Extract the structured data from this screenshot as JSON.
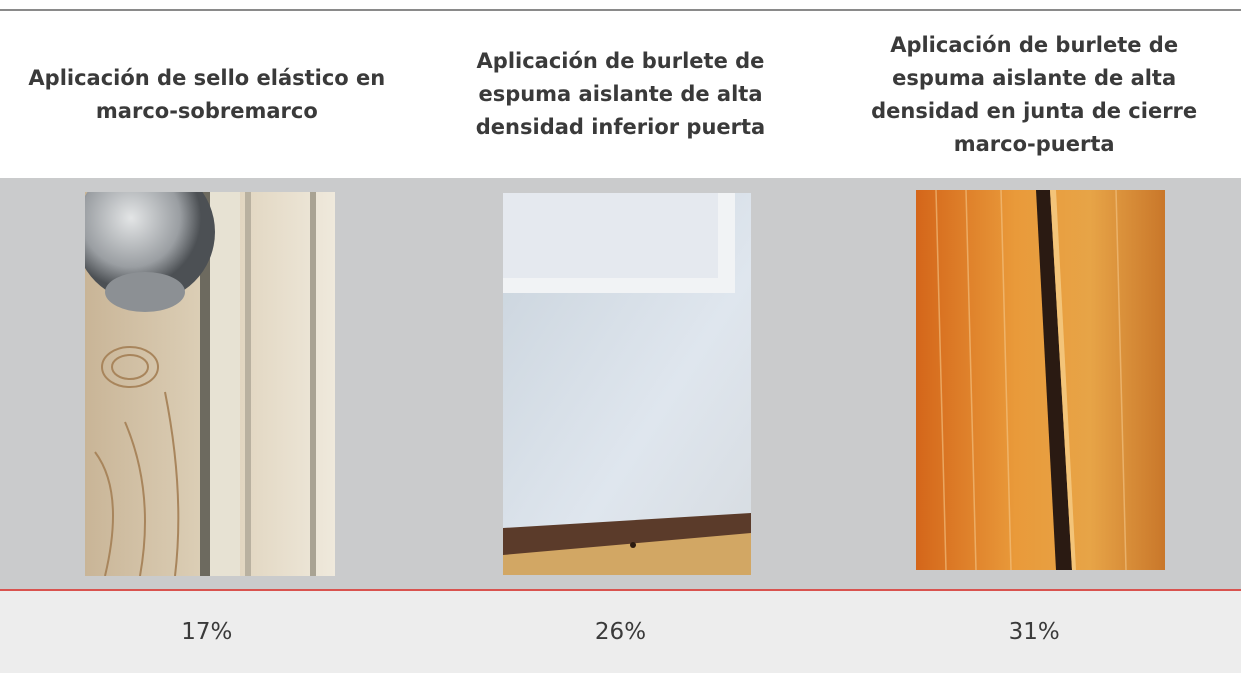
{
  "table": {
    "headers": [
      "Aplicación de sello elástico en marco-sobremarco",
      "Aplicación de burlete de espuma aislante de alta densidad inferior puerta",
      "Aplicación de burlete de espuma aislante de alta densidad en junta de cierre marco-puerta"
    ],
    "values": [
      "17%",
      "26%",
      "31%"
    ]
  }
}
